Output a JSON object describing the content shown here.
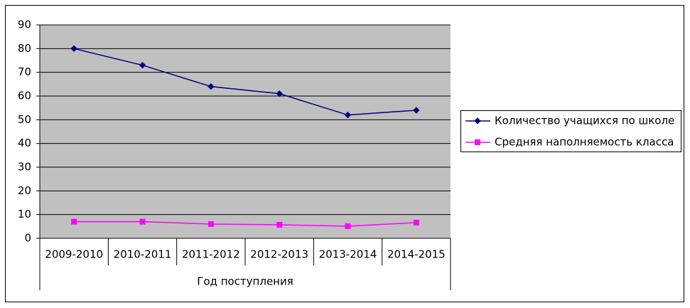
{
  "chart_data": {
    "type": "line",
    "x_label": "Год поступления",
    "categories": [
      "2009-2010",
      "2010-2011",
      "2011-2012",
      "2012-2013",
      "2013-2014",
      "2014-2015"
    ],
    "series": [
      {
        "name": "Количество учащихся по школе",
        "color": "#000080",
        "marker": "diamond",
        "values": [
          80,
          73,
          64,
          61,
          52,
          54
        ]
      },
      {
        "name": "Средняя наполняемость класса",
        "color": "#ff00ff",
        "marker": "square",
        "values": [
          7,
          7,
          6,
          5.7,
          5.1,
          6.6
        ]
      }
    ],
    "ylim": [
      0,
      90
    ],
    "yticks": [
      0,
      10,
      20,
      30,
      40,
      50,
      60,
      70,
      80,
      90
    ],
    "grid": true,
    "legend": "right"
  }
}
